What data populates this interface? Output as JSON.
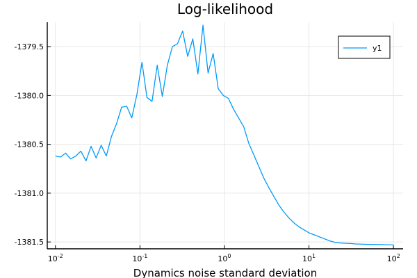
{
  "chart_data": {
    "type": "line",
    "title": "Log-likelihood",
    "xlabel": "Dynamics noise standard deviation",
    "ylabel": "",
    "xscale": "log10",
    "xlim": [
      0.008,
      130
    ],
    "ylim": [
      -1381.57,
      -1379.25
    ],
    "x_ticks": [
      {
        "value": 0.01,
        "base": "10",
        "exp": "-2"
      },
      {
        "value": 0.1,
        "base": "10",
        "exp": "-1"
      },
      {
        "value": 1,
        "base": "10",
        "exp": "0"
      },
      {
        "value": 10,
        "base": "10",
        "exp": "1"
      },
      {
        "value": 100,
        "base": "10",
        "exp": "2"
      }
    ],
    "y_ticks": [
      {
        "value": -1379.5,
        "label": "-1379.5"
      },
      {
        "value": -1380.0,
        "label": "-1380.0"
      },
      {
        "value": -1380.5,
        "label": "-1380.5"
      },
      {
        "value": -1381.0,
        "label": "-1381.0"
      },
      {
        "value": -1381.5,
        "label": "-1381.5"
      }
    ],
    "grid": true,
    "legend_position": "top-right",
    "series": [
      {
        "name": "y1",
        "color": "#009af9",
        "x": [
          0.01,
          0.0115,
          0.0132,
          0.0151,
          0.0174,
          0.02,
          0.023,
          0.0264,
          0.0303,
          0.0348,
          0.04,
          0.046,
          0.0528,
          0.0607,
          0.0697,
          0.08,
          0.092,
          0.1057,
          0.121,
          0.139,
          0.16,
          0.184,
          0.211,
          0.242,
          0.278,
          0.32,
          0.367,
          0.422,
          0.485,
          0.557,
          0.64,
          0.735,
          0.844,
          0.97,
          1.114,
          1.28,
          1.47,
          1.69,
          1.94,
          2.23,
          2.56,
          2.94,
          3.38,
          3.88,
          4.46,
          5.12,
          5.88,
          6.76,
          7.76,
          8.91,
          10.2,
          11.8,
          13.5,
          15.5,
          17.8,
          20.5,
          23.5,
          27.0,
          31.0,
          35.6,
          40.9,
          47.0,
          54.0,
          62.0,
          71.2,
          81.8,
          100
        ],
        "y": [
          -1380.62,
          -1380.63,
          -1380.59,
          -1380.65,
          -1380.62,
          -1380.57,
          -1380.67,
          -1380.52,
          -1380.64,
          -1380.51,
          -1380.62,
          -1380.42,
          -1380.29,
          -1380.12,
          -1380.11,
          -1380.23,
          -1379.99,
          -1379.66,
          -1380.02,
          -1380.06,
          -1379.69,
          -1380.01,
          -1379.69,
          -1379.5,
          -1379.47,
          -1379.34,
          -1379.6,
          -1379.42,
          -1379.78,
          -1379.28,
          -1379.77,
          -1379.57,
          -1379.93,
          -1380.0,
          -1380.03,
          -1380.14,
          -1380.23,
          -1380.32,
          -1380.49,
          -1380.61,
          -1380.73,
          -1380.85,
          -1380.95,
          -1381.04,
          -1381.13,
          -1381.2,
          -1381.26,
          -1381.31,
          -1381.35,
          -1381.38,
          -1381.41,
          -1381.43,
          -1381.45,
          -1381.47,
          -1381.49,
          -1381.505,
          -1381.51,
          -1381.513,
          -1381.516,
          -1381.52,
          -1381.522,
          -1381.524,
          -1381.525,
          -1381.526,
          -1381.527,
          -1381.528,
          -1381.53
        ]
      }
    ]
  }
}
